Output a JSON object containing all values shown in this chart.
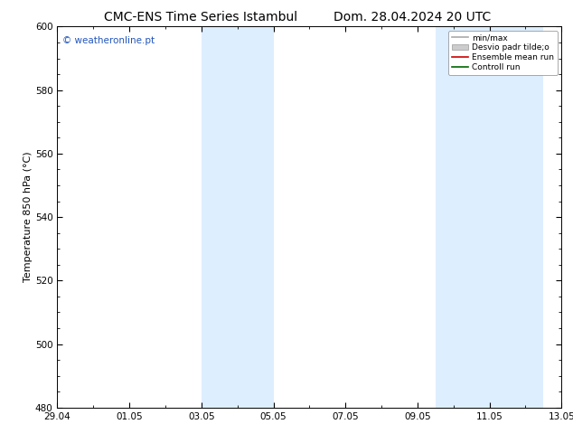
{
  "title_left": "CMC-ENS Time Series Istambul",
  "title_right": "Dom. 28.04.2024 20 UTC",
  "ylabel": "Temperature 850 hPa (°C)",
  "ylim": [
    480,
    600
  ],
  "yticks": [
    480,
    500,
    520,
    540,
    560,
    580,
    600
  ],
  "xlim_start": 0,
  "xlim_end": 14,
  "xtick_labels": [
    "29.04",
    "01.05",
    "03.05",
    "05.05",
    "07.05",
    "09.05",
    "11.05",
    "13.05"
  ],
  "xtick_positions": [
    0,
    2,
    4,
    6,
    8,
    10,
    12,
    14
  ],
  "shade_bands": [
    {
      "xstart": 4.0,
      "xend": 6.0
    },
    {
      "xstart": 10.5,
      "xend": 13.5
    }
  ],
  "shade_color": "#ddeeff",
  "watermark": "© weatheronline.pt",
  "watermark_color": "#2255bb",
  "background_color": "#ffffff",
  "plot_bg_color": "#ffffff",
  "legend_entries": [
    {
      "label": "min/max",
      "color": "#aaaaaa",
      "lw": 1.2,
      "type": "line"
    },
    {
      "label": "Desvio padr tilde;o",
      "color": "#cccccc",
      "lw": 5,
      "type": "patch"
    },
    {
      "label": "Ensemble mean run",
      "color": "#cc0000",
      "lw": 1.2,
      "type": "line"
    },
    {
      "label": "Controll run",
      "color": "#006600",
      "lw": 1.2,
      "type": "line"
    }
  ],
  "title_fontsize": 10,
  "tick_fontsize": 7.5,
  "ylabel_fontsize": 8,
  "watermark_fontsize": 7.5
}
